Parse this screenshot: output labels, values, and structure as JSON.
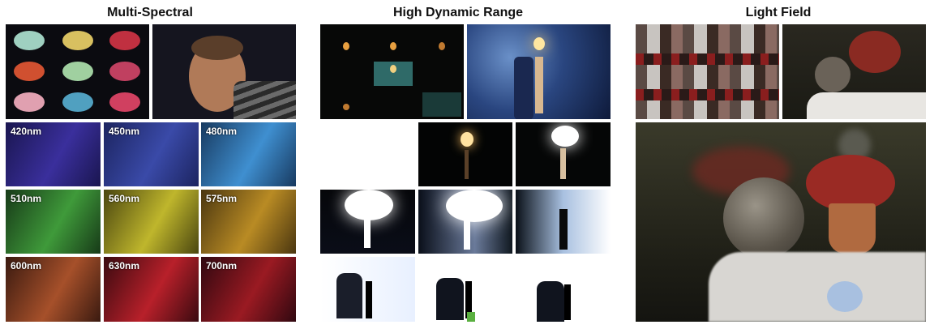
{
  "sections": {
    "multispectral": {
      "title": "Multi-Spectral"
    },
    "hdr": {
      "title": "High Dynamic Range"
    },
    "lightfield": {
      "title": "Light Field"
    }
  },
  "spectral_bands": [
    {
      "label": "420nm",
      "color": "#3a2f9c"
    },
    {
      "label": "450nm",
      "color": "#3a4aa8"
    },
    {
      "label": "480nm",
      "color": "#3f8fd0"
    },
    {
      "label": "510nm",
      "color": "#3f9a3a"
    },
    {
      "label": "560nm",
      "color": "#bfb62c"
    },
    {
      "label": "575nm",
      "color": "#b98b24"
    },
    {
      "label": "600nm",
      "color": "#a6502a"
    },
    {
      "label": "630nm",
      "color": "#b8202a"
    },
    {
      "label": "700nm",
      "color": "#9a1a22"
    }
  ]
}
